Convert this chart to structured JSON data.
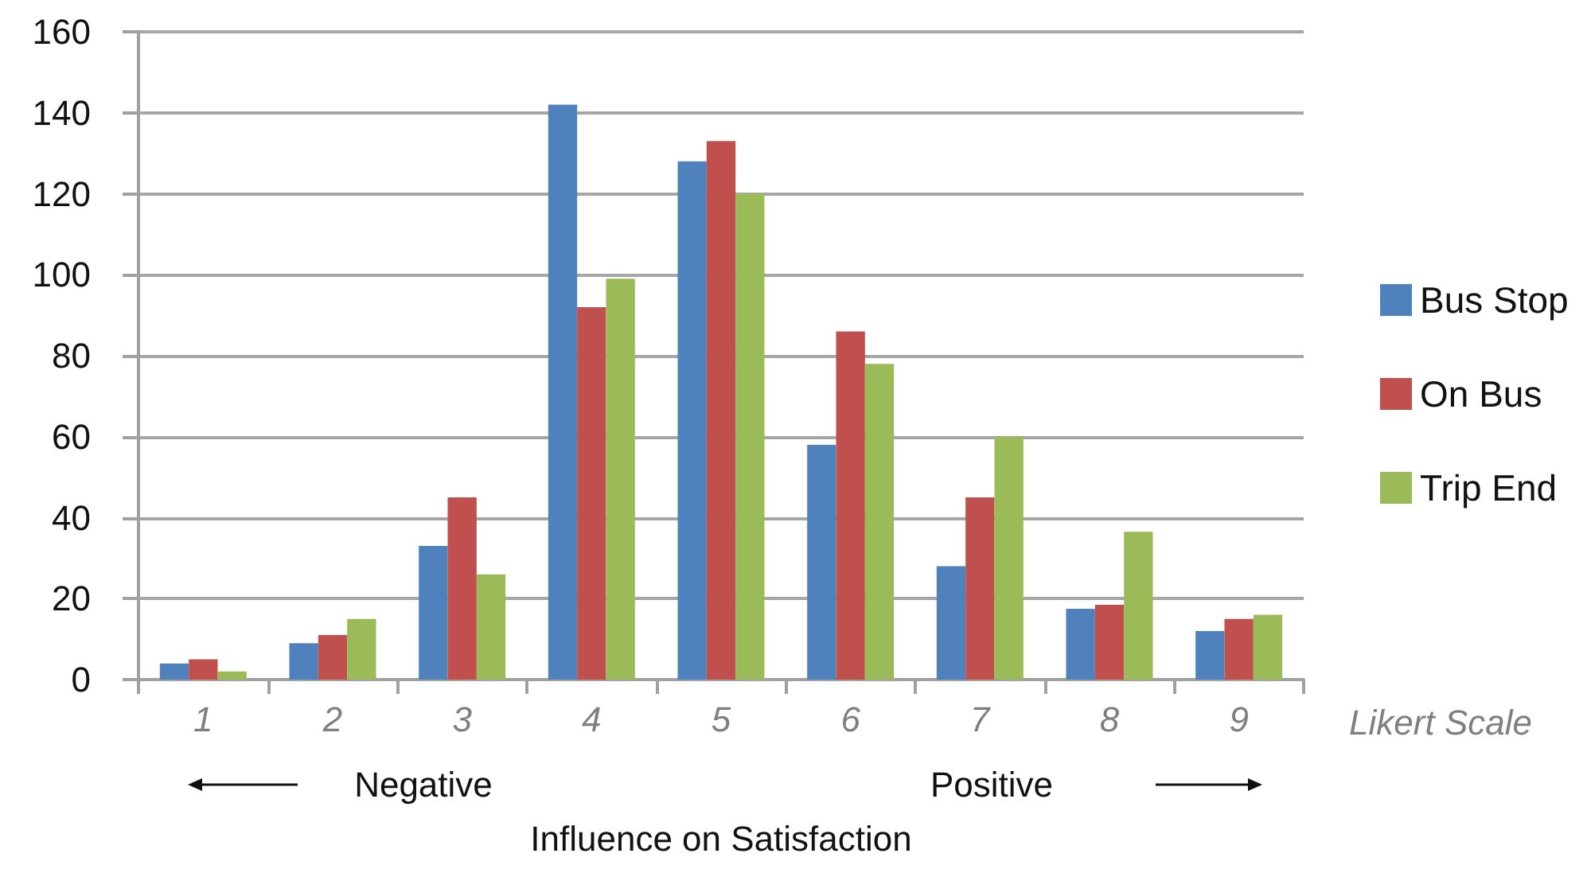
{
  "chart_data": {
    "type": "bar",
    "xlabel": "Influence on Satisfaction",
    "annotations": [
      "Likert Scale",
      "Negative",
      "Positive"
    ],
    "categories": [
      "1",
      "2",
      "3",
      "4",
      "5",
      "6",
      "7",
      "8",
      "9"
    ],
    "series": [
      {
        "name": "Bus Stop",
        "color": "#4f81bd",
        "values": [
          4,
          9,
          33,
          142,
          128,
          58,
          28,
          17.5,
          12
        ]
      },
      {
        "name": "On Bus",
        "color": "#c0504d",
        "values": [
          5,
          11,
          45,
          92,
          133,
          86,
          45,
          18.5,
          15
        ]
      },
      {
        "name": "Trip End",
        "color": "#9bbb59",
        "values": [
          2,
          15,
          26,
          99,
          120,
          78,
          60,
          36.5,
          16
        ]
      }
    ],
    "ylim": [
      0,
      160
    ],
    "yticks": [
      0,
      20,
      40,
      60,
      80,
      100,
      120,
      140,
      160
    ],
    "grid": "y",
    "legend": "right"
  }
}
